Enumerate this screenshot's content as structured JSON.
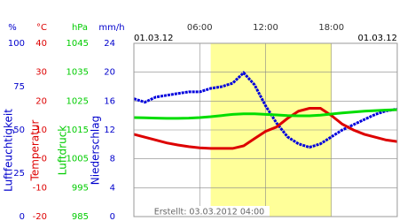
{
  "chart_data": {
    "type": "line",
    "date_left": "01.03.12",
    "date_right": "01.03.12",
    "footer": "Erstellt: 03.03.2012 04:00",
    "x": [
      0,
      1,
      2,
      3,
      4,
      5,
      6,
      7,
      8,
      9,
      10,
      11,
      12,
      13,
      14,
      15,
      16,
      17,
      18,
      19,
      20,
      21,
      22,
      23,
      24
    ],
    "xlim": [
      0,
      24
    ],
    "xticks": [
      {
        "value": 6,
        "label": "06:00"
      },
      {
        "value": 12,
        "label": "12:00"
      },
      {
        "value": 18,
        "label": "18:00"
      }
    ],
    "highlight": [
      7,
      18
    ],
    "highlight_color": "#ffff99",
    "grid": true,
    "axes": [
      {
        "unit": "%",
        "label": "Luftfeuchtigkeit",
        "color": "#0000cc",
        "ylim": [
          0,
          100
        ],
        "yticks": [
          0,
          25,
          50,
          75,
          100
        ]
      },
      {
        "unit": "°C",
        "label": "Temperatur",
        "color": "#dd0000",
        "ylim": [
          -20,
          40
        ],
        "yticks": [
          -20,
          -10,
          0,
          10,
          20,
          30,
          40
        ]
      },
      {
        "unit": "hPa",
        "label": "Luftdruck",
        "color": "#00cc00",
        "ylim": [
          985,
          1045
        ],
        "yticks": [
          985,
          995,
          1005,
          1015,
          1025,
          1035,
          1045
        ]
      },
      {
        "unit": "mm/h",
        "label": "Niederschlag",
        "color": "#0000cc",
        "ylim": [
          0,
          24
        ],
        "yticks": [
          0,
          4,
          8,
          12,
          16,
          20,
          24
        ]
      }
    ],
    "series": [
      {
        "axis": 0,
        "color": "#0000dd",
        "values": [
          68,
          66,
          69,
          70,
          71,
          72,
          72,
          74,
          75,
          77,
          83,
          76,
          64,
          54,
          46,
          42,
          40,
          42,
          46,
          50,
          53,
          56,
          59,
          61,
          62
        ]
      },
      {
        "axis": 1,
        "color": "#dd0000",
        "values": [
          8.5,
          7.5,
          6.5,
          5.5,
          4.8,
          4.2,
          3.8,
          3.6,
          3.6,
          3.6,
          4.5,
          7,
          9.5,
          11,
          14,
          16.5,
          17.5,
          17.5,
          15,
          12,
          10,
          8.5,
          7.5,
          6.5,
          6
        ]
      },
      {
        "axis": 2,
        "color": "#00dd00",
        "values": [
          1019.3,
          1019.2,
          1019.1,
          1019,
          1019,
          1019.1,
          1019.3,
          1019.6,
          1020,
          1020.4,
          1020.6,
          1020.6,
          1020.4,
          1020.2,
          1020,
          1019.9,
          1019.9,
          1020.1,
          1020.5,
          1020.9,
          1021.2,
          1021.5,
          1021.7,
          1021.9,
          1022
        ]
      }
    ]
  }
}
